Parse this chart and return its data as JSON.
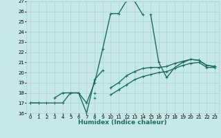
{
  "xlabel": "Humidex (Indice chaleur)",
  "background_color": "#c5e8e8",
  "grid_color": "#b0d0d0",
  "line_color": "#1e6b5e",
  "x_values": [
    0,
    1,
    2,
    3,
    4,
    5,
    6,
    7,
    8,
    9,
    10,
    11,
    12,
    13,
    14,
    15,
    16,
    17,
    18,
    19,
    20,
    21,
    22,
    23
  ],
  "series": {
    "line1": [
      17.0,
      17.0,
      17.0,
      17.0,
      17.0,
      18.0,
      18.0,
      17.0,
      19.0,
      22.3,
      25.8,
      25.8,
      27.1,
      27.0,
      25.7,
      null,
      null,
      null,
      null,
      null,
      null,
      null,
      null,
      null
    ],
    "line2": [
      17.0,
      17.0,
      null,
      17.5,
      18.0,
      18.0,
      18.0,
      16.0,
      19.3,
      20.2,
      null,
      null,
      null,
      null,
      null,
      null,
      null,
      null,
      null,
      null,
      null,
      null,
      null,
      null
    ],
    "line3": [
      17.0,
      null,
      null,
      null,
      null,
      null,
      null,
      null,
      18.0,
      null,
      18.5,
      19.0,
      19.7,
      20.1,
      20.4,
      20.5,
      20.5,
      20.6,
      20.9,
      21.1,
      21.3,
      21.2,
      20.7,
      20.6
    ],
    "line4": [
      17.0,
      null,
      null,
      null,
      null,
      null,
      null,
      null,
      17.5,
      null,
      17.8,
      18.3,
      18.8,
      19.3,
      19.6,
      19.8,
      20.0,
      20.1,
      20.4,
      20.7,
      20.9,
      21.0,
      20.5,
      20.5
    ],
    "line5": [
      null,
      null,
      null,
      null,
      null,
      null,
      null,
      null,
      null,
      null,
      null,
      null,
      null,
      null,
      null,
      25.7,
      21.0,
      19.5,
      20.5,
      21.0,
      21.3,
      21.2,
      20.7,
      20.6
    ]
  },
  "ylim": [
    16,
    27
  ],
  "xlim": [
    -0.5,
    23.5
  ],
  "yticks": [
    16,
    17,
    18,
    19,
    20,
    21,
    22,
    23,
    24,
    25,
    26,
    27
  ],
  "xticks": [
    0,
    1,
    2,
    3,
    4,
    5,
    6,
    7,
    8,
    9,
    10,
    11,
    12,
    13,
    14,
    15,
    16,
    17,
    18,
    19,
    20,
    21,
    22,
    23
  ],
  "marker": "+",
  "markersize": 3,
  "linewidth": 1.0,
  "tick_fontsize": 5.0,
  "label_fontsize": 6.5
}
